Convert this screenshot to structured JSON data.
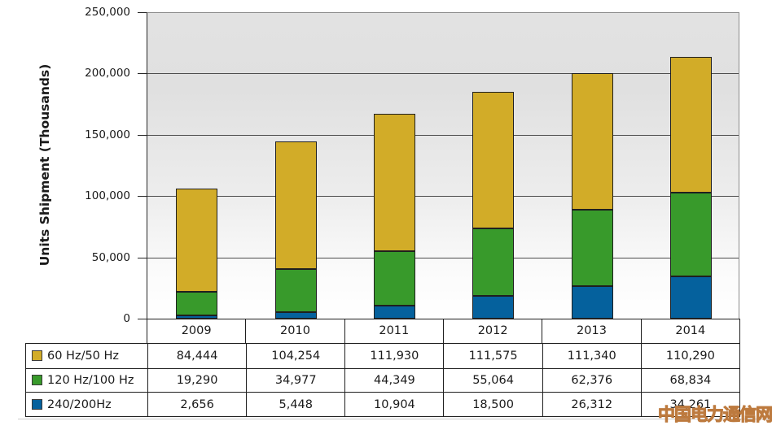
{
  "watermark": "中国电力通信网",
  "y_axis": {
    "label": "Units Shipment (Thousands)",
    "ticks": [
      "250,000",
      "200,000",
      "150,000",
      "100,000",
      "50,000",
      "0"
    ],
    "tick_values": [
      250000,
      200000,
      150000,
      100000,
      50000,
      0
    ]
  },
  "chart_data": {
    "type": "bar",
    "subtype": "stacked-vertical",
    "title": "",
    "ylabel": "Units Shipment (Thousands)",
    "xlabel": "",
    "ylim": [
      0,
      250000
    ],
    "gridlines": true,
    "legend_position": "table-left",
    "categories": [
      "2009",
      "2010",
      "2011",
      "2012",
      "2013",
      "2014"
    ],
    "series": [
      {
        "name": "60 Hz/50 Hz",
        "color": "#D2AC28",
        "values": [
          84444,
          104254,
          111930,
          111575,
          111340,
          110290
        ],
        "labels": [
          "84,444",
          "104,254",
          "111,930",
          "111,575",
          "111,340",
          "110,290"
        ]
      },
      {
        "name": "120 Hz/100 Hz",
        "color": "#389A2B",
        "values": [
          19290,
          34977,
          44349,
          55064,
          62376,
          68834
        ],
        "labels": [
          "19,290",
          "34,977",
          "44,349",
          "55,064",
          "62,376",
          "68,834"
        ]
      },
      {
        "name": "240/200Hz",
        "color": "#05619D",
        "values": [
          2656,
          5448,
          10904,
          18500,
          26312,
          34261
        ],
        "labels": [
          "2,656",
          "5,448",
          "10,904",
          "18,500",
          "26,312",
          "34,261"
        ]
      }
    ],
    "stack_order_bottom_to_top": [
      "240/200Hz",
      "120 Hz/100 Hz",
      "60 Hz/50 Hz"
    ]
  }
}
